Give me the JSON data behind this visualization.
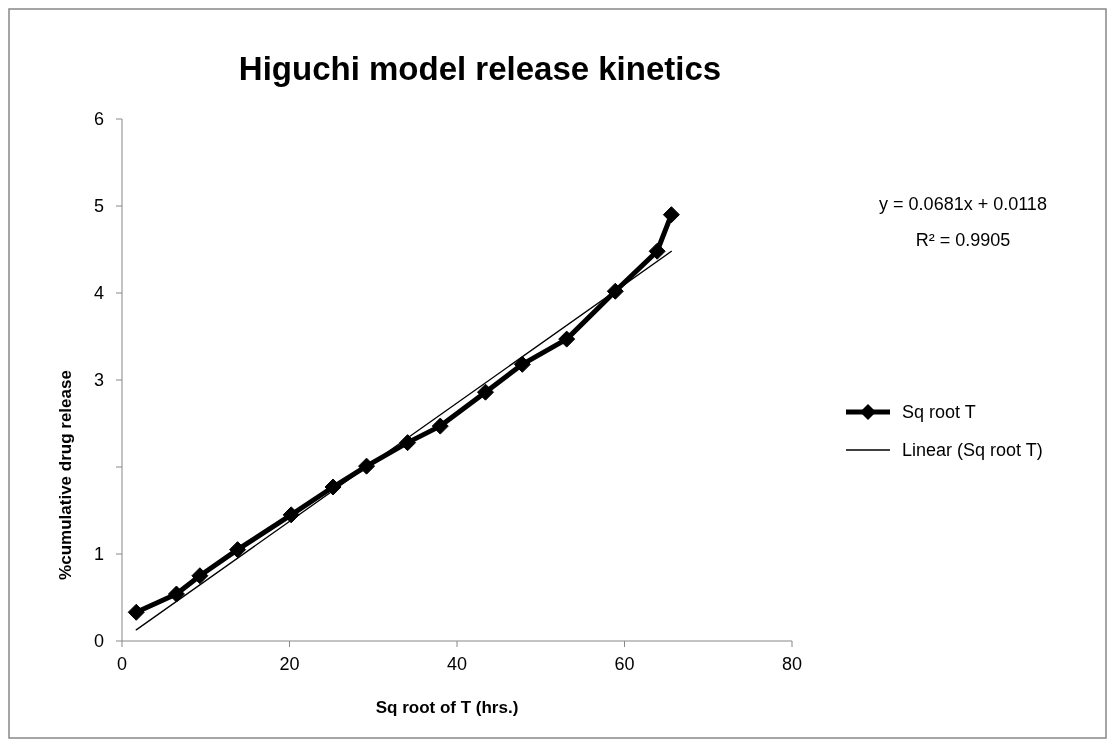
{
  "chart_data": {
    "type": "line",
    "title": "Higuchi model release kinetics",
    "xlabel": "Sq root of T (hrs.)",
    "ylabel": "%cumulative drug release",
    "xlim": [
      0,
      80
    ],
    "xticks": [
      0,
      20,
      40,
      60,
      80
    ],
    "ylim": [
      0,
      6
    ],
    "yticks": [
      0,
      1,
      {
        "value": 2,
        "label": null
      },
      3,
      4,
      5,
      6
    ],
    "grid": false,
    "legend": "right",
    "marker": "diamond",
    "line_style": "solid",
    "annotations": [
      "y = 0.0681x  + 0.0118",
      "R² = 0.9905"
    ],
    "series": [
      {
        "name": "Sq root T",
        "color": "#000000",
        "x": [
          1.7,
          6.5,
          9.3,
          13.8,
          20.2,
          25.2,
          29.2,
          34.1,
          38.0,
          43.4,
          47.8,
          53.1,
          58.9,
          63.9,
          65.6
        ],
        "values": [
          0.33,
          0.54,
          0.75,
          1.05,
          1.45,
          1.77,
          2.01,
          2.28,
          2.47,
          2.86,
          3.18,
          3.47,
          4.02,
          4.48,
          4.9
        ]
      },
      {
        "name": "Linear (Sq root T)",
        "color": "#000000",
        "type": "line",
        "marker": "none",
        "x": [
          1.7,
          65.6
        ],
        "values": [
          0.128,
          4.479
        ]
      }
    ]
  }
}
